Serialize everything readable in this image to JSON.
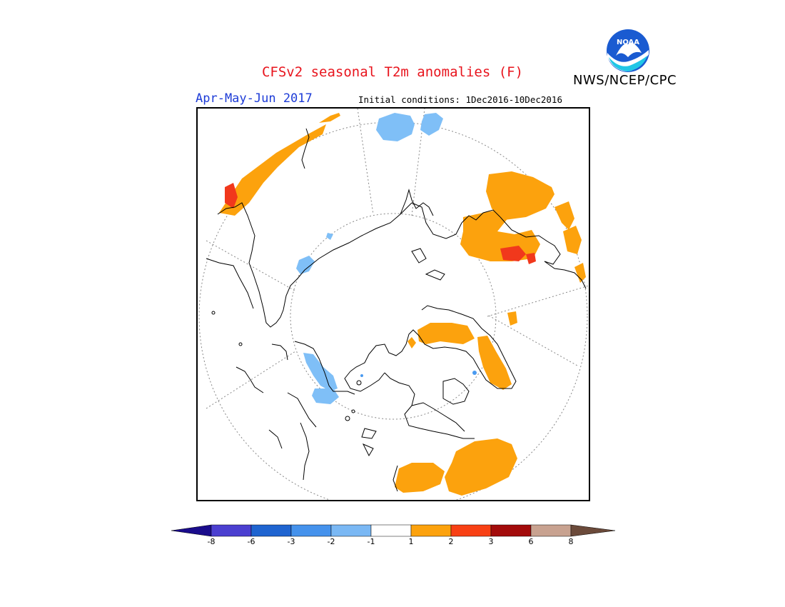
{
  "title": "CFSv2 seasonal T2m anomalies (F)",
  "period": "Apr-May-Jun 2017",
  "initial_conditions": "Initial conditions: 1Dec2016-10Dec2016",
  "agency": "NWS/NCEP/CPC",
  "logo_text": "NOAA",
  "colors": {
    "title": "#e8141d",
    "period": "#1c3bd7",
    "warm1": "#fca20d",
    "warm3": "#f1381c",
    "cool1": "#7fbff7",
    "cool2": "#4a9af0",
    "coast": "#000000",
    "grid": "#888888"
  },
  "colorbar": {
    "labels": [
      "-8",
      "-6",
      "-3",
      "-2",
      "-1",
      "1",
      "2",
      "3",
      "6",
      "8"
    ],
    "colors": [
      "#1a0c8c",
      "#4b3fd0",
      "#1f64d0",
      "#4592ec",
      "#7ab8f4",
      "#ffffff",
      "#fca20d",
      "#f84014",
      "#a30b0b",
      "#c8a290",
      "#6b4a3a"
    ]
  }
}
